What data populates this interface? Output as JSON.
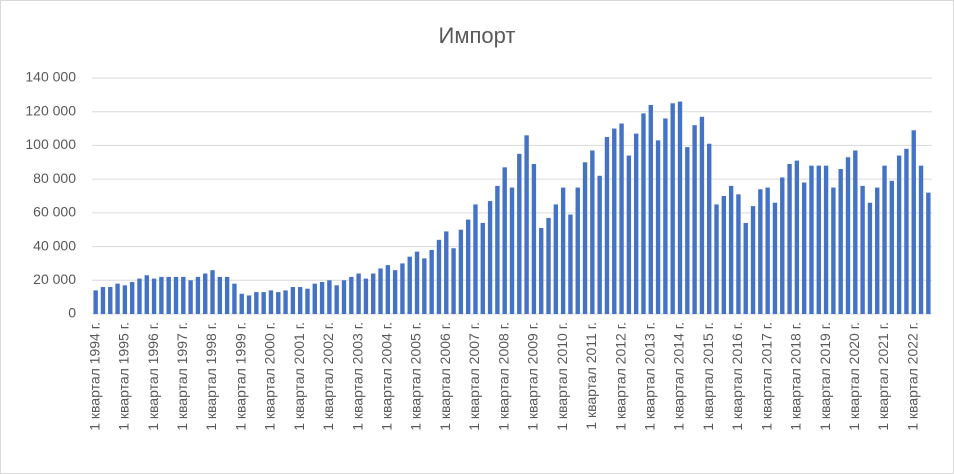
{
  "chart_data": {
    "type": "bar",
    "title": "Импорт",
    "categories": [
      "1 квартал 1994 г.",
      null,
      null,
      null,
      "1 квартал 1995 г.",
      null,
      null,
      null,
      "1 квартал 1996 г.",
      null,
      null,
      null,
      "1 квартал 1997 г.",
      null,
      null,
      null,
      "1 квартал 1998 г.",
      null,
      null,
      null,
      "1 квартал 1999 г.",
      null,
      null,
      null,
      "1 квартал 2000 г.",
      null,
      null,
      null,
      "1 квартал 2001 г.",
      null,
      null,
      null,
      "1 квартал 2002 г.",
      null,
      null,
      null,
      "1 квартал 2003 г.",
      null,
      null,
      null,
      "1 квартал 2004 г.",
      null,
      null,
      null,
      "1 квартал 2005 г.",
      null,
      null,
      null,
      "1 квартал 2006 г.",
      null,
      null,
      null,
      "1 квартал 2007 г.",
      null,
      null,
      null,
      "1 квартал 2008 г.",
      null,
      null,
      null,
      "1 квартал 2009 г.",
      null,
      null,
      null,
      "1 квартал 2010 г.",
      null,
      null,
      null,
      "1 квартал 2011 г.",
      null,
      null,
      null,
      "1 квартал 2012 г.",
      null,
      null,
      null,
      "1 квартал 2013 г.",
      null,
      null,
      null,
      "1 квартал 2014 г.",
      null,
      null,
      null,
      "1 квартал 2015 г.",
      null,
      null,
      null,
      "1 квартал 2016 г.",
      null,
      null,
      null,
      "1 квартал 2017 г.",
      null,
      null,
      null,
      "1 квартал 2018 г.",
      null,
      null,
      null,
      "1 квартал 2019 г.",
      null,
      null,
      null,
      "1 квартал 2020 г.",
      null,
      null,
      null,
      "1 квартал 2021 г.",
      null,
      null,
      null,
      "1 квартал 2022 г.",
      null,
      null
    ],
    "values": [
      14000,
      16000,
      16000,
      18000,
      17000,
      19000,
      21000,
      23000,
      21000,
      22000,
      22000,
      22000,
      22000,
      20000,
      22000,
      24000,
      26000,
      22000,
      22000,
      18000,
      12000,
      11000,
      13000,
      13000,
      14000,
      13000,
      14000,
      16000,
      16000,
      15000,
      18000,
      19000,
      20000,
      17000,
      20000,
      22000,
      24000,
      21000,
      24000,
      27000,
      29000,
      26000,
      30000,
      34000,
      37000,
      33000,
      38000,
      44000,
      49000,
      39000,
      50000,
      56000,
      65000,
      54000,
      67000,
      76000,
      87000,
      75000,
      95000,
      106000,
      89000,
      51000,
      57000,
      65000,
      75000,
      59000,
      75000,
      90000,
      97000,
      82000,
      105000,
      110000,
      113000,
      94000,
      107000,
      119000,
      124000,
      103000,
      116000,
      125000,
      126000,
      99000,
      112000,
      117000,
      101000,
      65000,
      70000,
      76000,
      71000,
      54000,
      64000,
      74000,
      75000,
      66000,
      81000,
      89000,
      91000,
      78000,
      88000,
      88000,
      88000,
      75000,
      86000,
      93000,
      97000,
      76000,
      66000,
      75000,
      88000,
      79000,
      94000,
      98000,
      109000,
      88000,
      72000
    ],
    "color": "#4472c4",
    "ylim": [
      0,
      140000
    ],
    "yticks": [
      0,
      {
        "value": 20000,
        "label": "20 000"
      },
      {
        "value": 40000,
        "label": "40 000"
      },
      {
        "value": 60000,
        "label": "60 000"
      },
      {
        "value": 80000,
        "label": "80 000"
      },
      {
        "value": 100000,
        "label": "100 000"
      },
      {
        "value": 120000,
        "label": "120 000"
      },
      {
        "value": 140000,
        "label": "140 000"
      }
    ],
    "grid": true
  }
}
